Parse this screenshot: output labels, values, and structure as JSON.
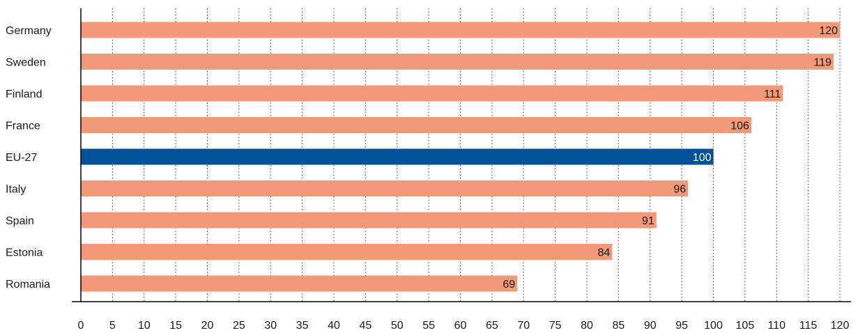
{
  "chart_data": {
    "type": "bar",
    "orientation": "horizontal",
    "categories": [
      "Germany",
      "Sweden",
      "Finland",
      "France",
      "EU-27",
      "Italy",
      "Spain",
      "Estonia",
      "Romania"
    ],
    "values": [
      120,
      119,
      111,
      106,
      100,
      96,
      91,
      84,
      69
    ],
    "highlight": "EU-27",
    "xlim": [
      0,
      120
    ],
    "xticks": [
      "0",
      "5",
      "10",
      "15",
      "20",
      "25",
      "30",
      "35",
      "40",
      "45",
      "50",
      "55",
      "60",
      "65",
      "70",
      "75",
      "80",
      "85",
      "90",
      "95",
      "100",
      "105",
      "110",
      "115",
      "120"
    ],
    "grid": "vertical-dotted",
    "colors": {
      "bar": "#f2997a",
      "highlight": "#005195",
      "label_on_bar": "#1a1a1a",
      "label_on_highlight": "#ffffff",
      "grid": "#333333",
      "axis": "#000000"
    }
  }
}
